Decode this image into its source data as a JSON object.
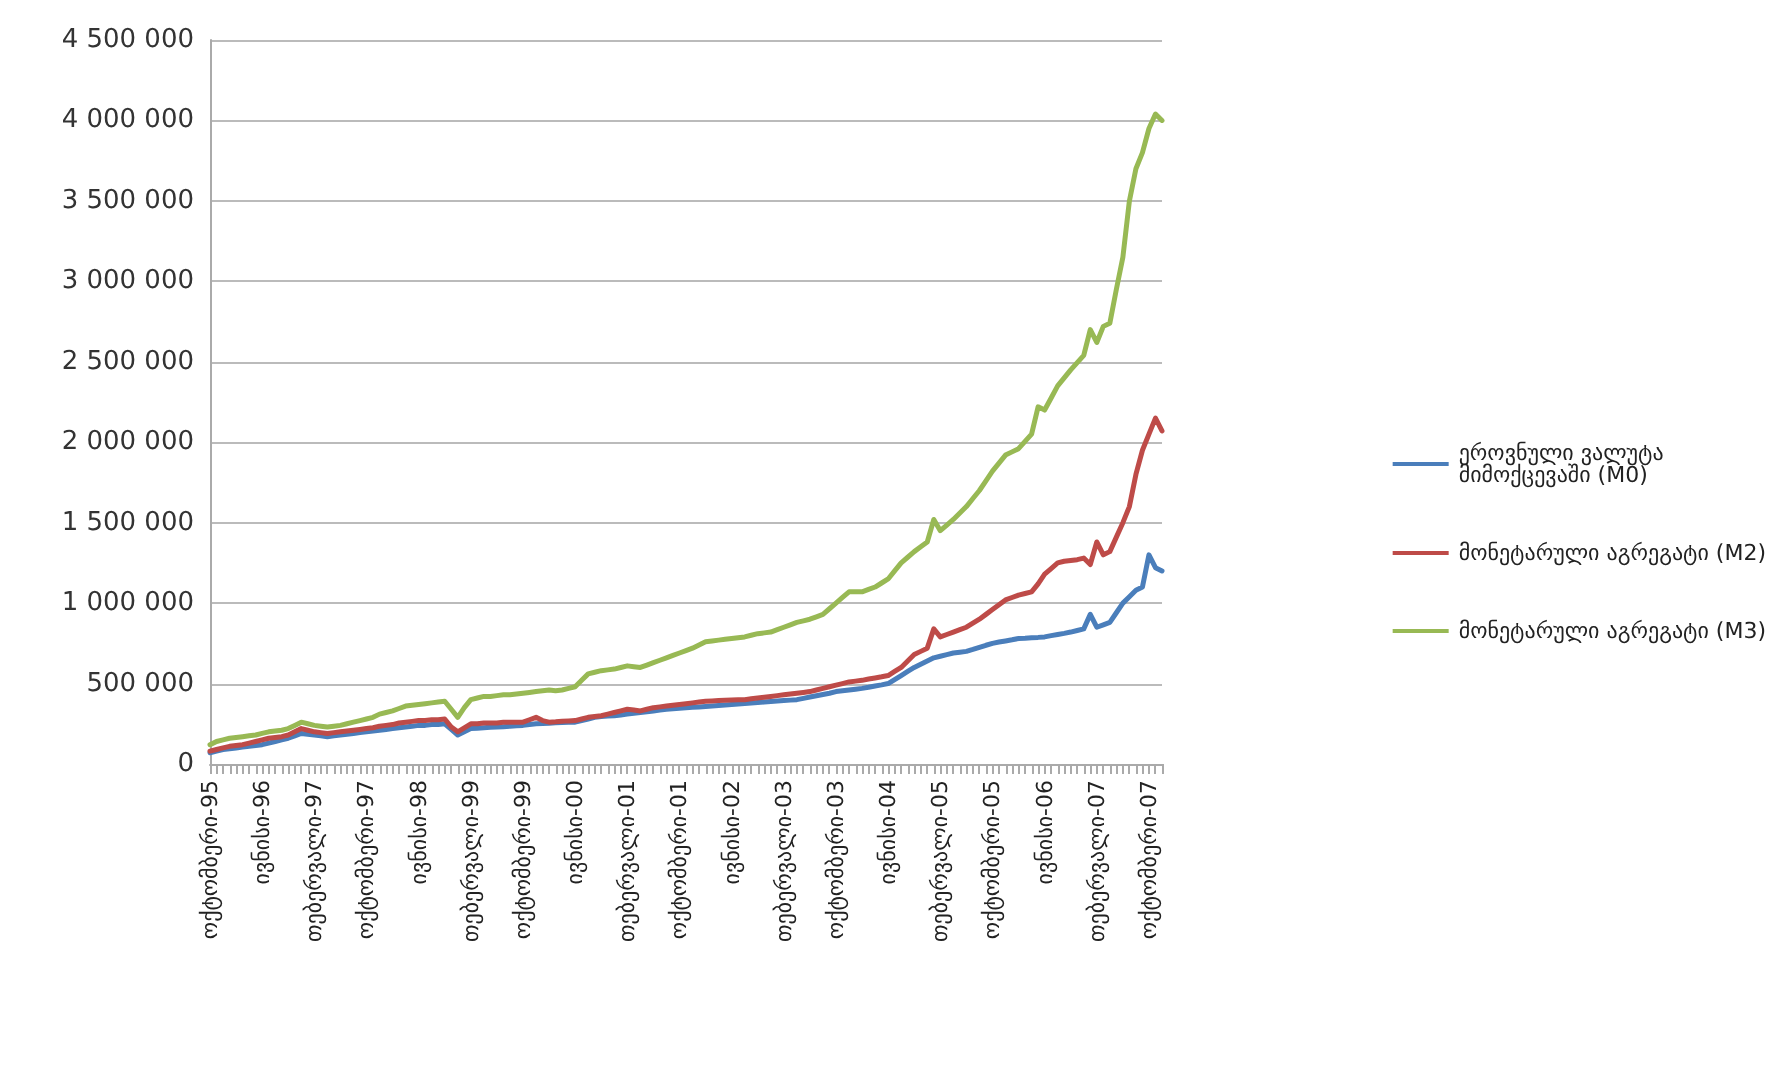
{
  "chart_data": {
    "type": "line",
    "categories": [
      "ოქტომბერი-95",
      null,
      null,
      null,
      null,
      null,
      null,
      null,
      "ივნისი-96",
      null,
      null,
      null,
      null,
      null,
      null,
      null,
      "თებერვალი-97",
      null,
      null,
      null,
      null,
      null,
      null,
      null,
      "ოქტომბერი-97",
      null,
      null,
      null,
      null,
      null,
      null,
      null,
      "ივნისი-98",
      null,
      null,
      null,
      null,
      null,
      null,
      null,
      "თებერვალი-99",
      null,
      null,
      null,
      null,
      null,
      null,
      null,
      "ოქტომბერი-99",
      null,
      null,
      null,
      null,
      null,
      null,
      null,
      "ივნისი-00",
      null,
      null,
      null,
      null,
      null,
      null,
      null,
      "თებერვალი-01",
      null,
      null,
      null,
      null,
      null,
      null,
      null,
      "ოქტომბერი-01",
      null,
      null,
      null,
      null,
      null,
      null,
      null,
      "ივნისი-02",
      null,
      null,
      null,
      null,
      null,
      null,
      null,
      "თებერვალი-03",
      null,
      null,
      null,
      null,
      null,
      null,
      null,
      "ოქტომბერი-03",
      null,
      null,
      null,
      null,
      null,
      null,
      null,
      "ივნისი-04",
      null,
      null,
      null,
      null,
      null,
      null,
      null,
      "თებერვალი-05",
      null,
      null,
      null,
      null,
      null,
      null,
      null,
      "ოქტომბერი-05",
      null,
      null,
      null,
      null,
      null,
      null,
      null,
      "ივნისი-06",
      null,
      null,
      null,
      null,
      null,
      null,
      null,
      "თებერვალი-07",
      null,
      null,
      null,
      null,
      null,
      null,
      null,
      "ოქტომბერი-07",
      null,
      null
    ],
    "series": [
      {
        "name": "ეროვნული ვალუტა მიმოქცევაში (M0)",
        "color": "#4a7ebb",
        "values": [
          70000,
          80000,
          90000,
          95000,
          100000,
          105000,
          110000,
          115000,
          120000,
          130000,
          140000,
          150000,
          160000,
          175000,
          190000,
          185000,
          180000,
          175000,
          170000,
          175000,
          180000,
          185000,
          190000,
          195000,
          200000,
          205000,
          210000,
          215000,
          220000,
          225000,
          230000,
          235000,
          240000,
          240000,
          245000,
          245000,
          250000,
          215000,
          180000,
          200000,
          220000,
          222000,
          225000,
          228000,
          230000,
          232000,
          235000,
          238000,
          240000,
          245000,
          250000,
          252000,
          254000,
          256000,
          258000,
          259000,
          260000,
          270000,
          280000,
          290000,
          295000,
          298000,
          300000,
          305000,
          310000,
          315000,
          320000,
          325000,
          330000,
          335000,
          340000,
          343000,
          346000,
          349000,
          352000,
          355000,
          358000,
          361000,
          364000,
          367000,
          370000,
          373000,
          376000,
          379000,
          382000,
          385000,
          388000,
          391000,
          394000,
          397000,
          400000,
          408000,
          416000,
          424000,
          432000,
          440000,
          450000,
          455000,
          460000,
          465000,
          470000,
          477000,
          485000,
          492000,
          500000,
          525000,
          550000,
          575000,
          600000,
          620000,
          640000,
          660000,
          670000,
          680000,
          690000,
          695000,
          700000,
          712000,
          725000,
          738000,
          750000,
          758000,
          765000,
          772000,
          780000,
          782000,
          785000,
          787000,
          790000,
          798000,
          805000,
          812000,
          820000,
          830000,
          840000,
          930000,
          850000,
          865000,
          880000,
          940000,
          1000000,
          1040000,
          1080000,
          1100000,
          1300000,
          1220000,
          1200000
        ]
      },
      {
        "name": "მონეტარული აგრეგატი (M2)",
        "color": "#be4b48",
        "values": [
          80000,
          90000,
          100000,
          110000,
          115000,
          120000,
          130000,
          140000,
          150000,
          160000,
          165000,
          170000,
          180000,
          200000,
          220000,
          210000,
          200000,
          195000,
          190000,
          195000,
          200000,
          205000,
          210000,
          215000,
          220000,
          225000,
          235000,
          240000,
          245000,
          255000,
          260000,
          265000,
          270000,
          270000,
          275000,
          275000,
          280000,
          230000,
          200000,
          225000,
          250000,
          250000,
          255000,
          255000,
          255000,
          260000,
          260000,
          260000,
          260000,
          275000,
          290000,
          270000,
          260000,
          262000,
          265000,
          268000,
          270000,
          280000,
          290000,
          295000,
          300000,
          310000,
          320000,
          330000,
          340000,
          335000,
          330000,
          340000,
          350000,
          355000,
          360000,
          365000,
          370000,
          375000,
          380000,
          385000,
          390000,
          392000,
          394000,
          396000,
          398000,
          400000,
          400000,
          405000,
          410000,
          415000,
          420000,
          425000,
          430000,
          435000,
          440000,
          445000,
          450000,
          460000,
          470000,
          480000,
          490000,
          500000,
          510000,
          515000,
          520000,
          528000,
          535000,
          542000,
          550000,
          575000,
          600000,
          640000,
          680000,
          700000,
          720000,
          840000,
          790000,
          805000,
          820000,
          835000,
          850000,
          875000,
          900000,
          930000,
          960000,
          990000,
          1020000,
          1035000,
          1050000,
          1060000,
          1070000,
          1120000,
          1180000,
          1215000,
          1250000,
          1260000,
          1265000,
          1270000,
          1280000,
          1240000,
          1380000,
          1300000,
          1320000,
          1410000,
          1500000,
          1600000,
          1800000,
          1950000,
          2050000,
          2150000,
          2070000
        ]
      },
      {
        "name": "მონეტარული აგრეგატი (M3)",
        "color": "#98b954",
        "values": [
          120000,
          140000,
          150000,
          160000,
          165000,
          170000,
          175000,
          180000,
          190000,
          200000,
          205000,
          210000,
          220000,
          240000,
          260000,
          250000,
          240000,
          235000,
          230000,
          235000,
          240000,
          250000,
          260000,
          270000,
          280000,
          290000,
          310000,
          320000,
          330000,
          345000,
          360000,
          365000,
          370000,
          375000,
          380000,
          385000,
          390000,
          340000,
          290000,
          350000,
          400000,
          410000,
          420000,
          420000,
          425000,
          430000,
          430000,
          435000,
          440000,
          445000,
          450000,
          455000,
          460000,
          455000,
          460000,
          470000,
          480000,
          520000,
          560000,
          570000,
          580000,
          585000,
          590000,
          600000,
          610000,
          605000,
          600000,
          615000,
          630000,
          645000,
          660000,
          675000,
          690000,
          705000,
          720000,
          740000,
          760000,
          765000,
          770000,
          775000,
          780000,
          785000,
          790000,
          800000,
          810000,
          815000,
          820000,
          835000,
          850000,
          865000,
          880000,
          890000,
          900000,
          915000,
          930000,
          965000,
          1000000,
          1035000,
          1070000,
          1070000,
          1070000,
          1085000,
          1100000,
          1125000,
          1150000,
          1200000,
          1250000,
          1285000,
          1320000,
          1350000,
          1380000,
          1520000,
          1450000,
          1485000,
          1520000,
          1560000,
          1600000,
          1650000,
          1700000,
          1760000,
          1820000,
          1870000,
          1920000,
          1940000,
          1960000,
          2005000,
          2050000,
          2220000,
          2200000,
          2275000,
          2350000,
          2400000,
          2450000,
          2495000,
          2540000,
          2700000,
          2620000,
          2720000,
          2740000,
          2950000,
          3150000,
          3500000,
          3700000,
          3800000,
          3950000,
          4040000,
          4000000
        ]
      }
    ],
    "ylim": [
      0,
      4500000
    ],
    "yticks": [
      {
        "value": 0,
        "label": "0"
      },
      {
        "value": 500000,
        "label": "500 000"
      },
      {
        "value": 1000000,
        "label": "1 000 000"
      },
      {
        "value": 1500000,
        "label": "1 500 000"
      },
      {
        "value": 2000000,
        "label": "2 000 000"
      },
      {
        "value": 2500000,
        "label": "2 500 000"
      },
      {
        "value": 3000000,
        "label": "3 000 000"
      },
      {
        "value": 3500000,
        "label": "3 500 000"
      },
      {
        "value": 4000000,
        "label": "4 000 000"
      },
      {
        "value": 4500000,
        "label": "4 500 000"
      }
    ],
    "grid": "y",
    "legend": "right",
    "marker": "none",
    "line_style": "solid"
  }
}
